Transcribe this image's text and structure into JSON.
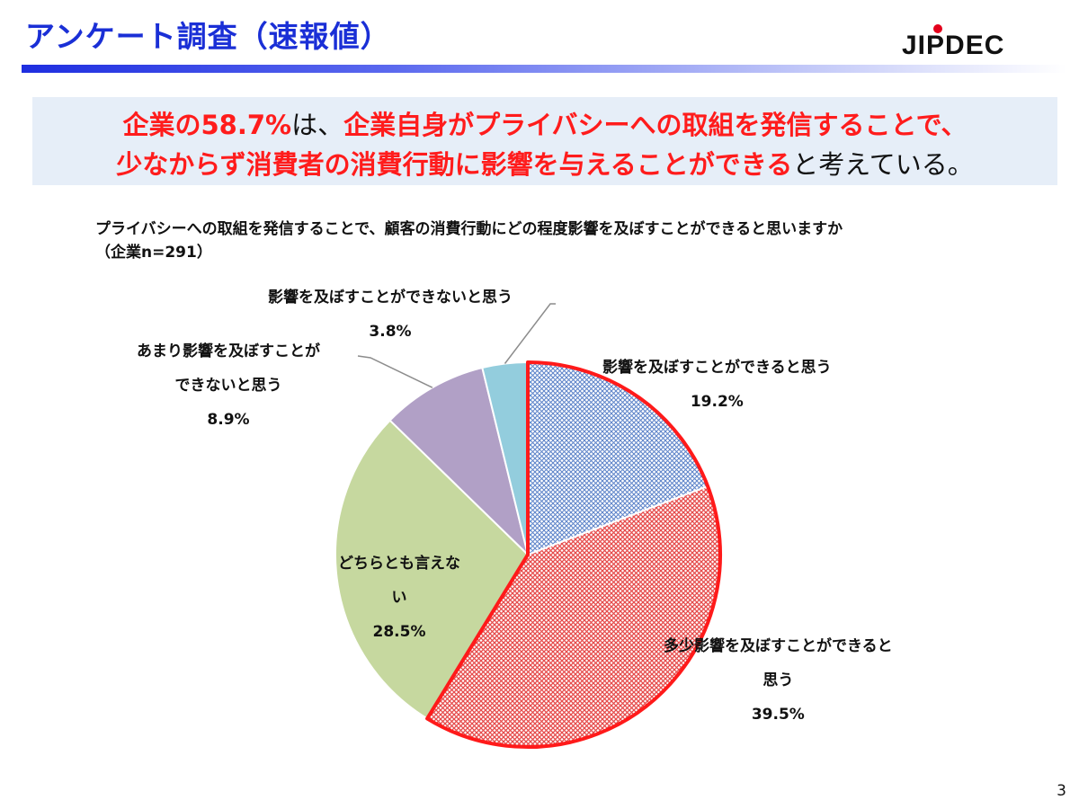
{
  "header": {
    "title": "アンケート調査（速報値）",
    "logo_text": "JIPDEC"
  },
  "banner": {
    "line1_part1": "企業の58.7%",
    "line1_part2": "は、",
    "line1_part3": "企業自身がプライバシーへの取組を発信することで、",
    "line2_part1": "少なからず消費者の消費行動に影響を与えることができる",
    "line2_part2": "と考えている。"
  },
  "question": "プライバシーへの取組を発信することで、顧客の消費行動にどの程度影響を及ぼすことができると思いますか",
  "sample": "（企業n=291）",
  "chart_data": {
    "type": "pie",
    "start_angle_deg": 0,
    "direction": "clockwise",
    "slices": [
      {
        "label": "影響を及ぼすことができると思う",
        "value": 19.2,
        "value_label": "19.2%",
        "color": "#5b82c8",
        "pattern": "crosshatch",
        "highlight": true
      },
      {
        "label": "多少影響を及ぼすことができると思う",
        "value": 39.5,
        "value_label": "39.5%",
        "color": "#e64a4a",
        "pattern": "crosshatch",
        "highlight": true
      },
      {
        "label": "どちらとも言えない",
        "value": 28.5,
        "value_label": "28.5%",
        "color": "#c6d89f",
        "pattern": "solid",
        "highlight": false
      },
      {
        "label": "あまり影響を及ぼすことができないと思う",
        "value": 8.9,
        "value_label": "8.9%",
        "color": "#b1a0c6",
        "pattern": "solid",
        "highlight": false
      },
      {
        "label": "影響を及ぼすことができないと思う",
        "value": 3.8,
        "value_label": "3.8%",
        "color": "#93cddd",
        "pattern": "solid",
        "highlight": false
      }
    ],
    "highlight_color": "#ff1a1a"
  },
  "labels": {
    "s0_line1": "影響を及ぼすことができると思う",
    "s1_line1": "多少影響を及ぼすことができると",
    "s1_line2": "思う",
    "s2_line1": "どちらとも言えな",
    "s2_line2": "い",
    "s3_line1": "あまり影響を及ぼすことが",
    "s3_line2": "できないと思う",
    "s4_line1": "影響を及ぼすことができないと思う"
  },
  "page_number": "3"
}
